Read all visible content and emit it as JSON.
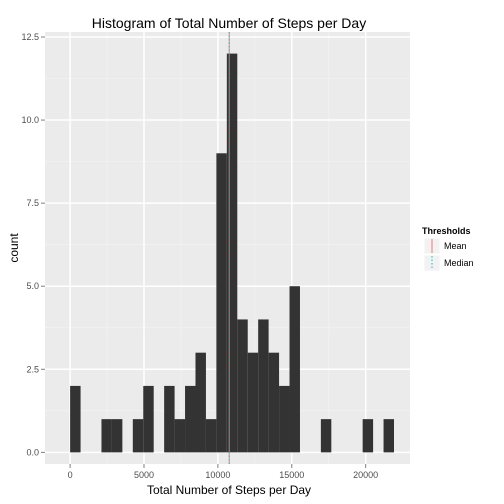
{
  "chart_data": {
    "type": "histogram",
    "title": "Histogram of Total Number of Steps per Day",
    "xlabel": "Total Number of Steps per Day",
    "ylabel": "count",
    "xlim": [
      -1700,
      23000
    ],
    "ylim": [
      -0.35,
      12.65
    ],
    "x_ticks": [
      0,
      5000,
      10000,
      15000,
      20000
    ],
    "x_tick_labels": [
      "0",
      "5000",
      "10000",
      "15000",
      "20000"
    ],
    "y_ticks": [
      0,
      2.5,
      5,
      7.5,
      10,
      12.5
    ],
    "y_tick_labels": [
      "0.0",
      "2.5",
      "5.0",
      "7.5",
      "10.0",
      "12.5"
    ],
    "bin_width": 707,
    "bin_start": 0,
    "counts": [
      2,
      0,
      0,
      1,
      1,
      0,
      1,
      2,
      0,
      2,
      1,
      2,
      3,
      1,
      9,
      12,
      4,
      3,
      4,
      3,
      2,
      5,
      0,
      0,
      1,
      0,
      0,
      0,
      1,
      0,
      1
    ],
    "grid": true,
    "legend_position": "right",
    "legend": {
      "title": "Thresholds",
      "items": [
        {
          "label": "Mean",
          "line_style": "solid",
          "color": "#f8766d"
        },
        {
          "label": "Median",
          "line_style": "dotted",
          "color": "#00bfc4"
        }
      ]
    },
    "thresholds": [
      {
        "name": "Mean",
        "value": 10766,
        "color": "#f8766d",
        "line_style": "solid"
      },
      {
        "name": "Median",
        "value": 10765,
        "color": "#00bfc4",
        "line_style": "dotted"
      }
    ],
    "colors": {
      "panel": "#ebebeb",
      "grid_major": "#ffffff",
      "grid_minor": "#f2f2f2",
      "bar": "#333333"
    }
  }
}
